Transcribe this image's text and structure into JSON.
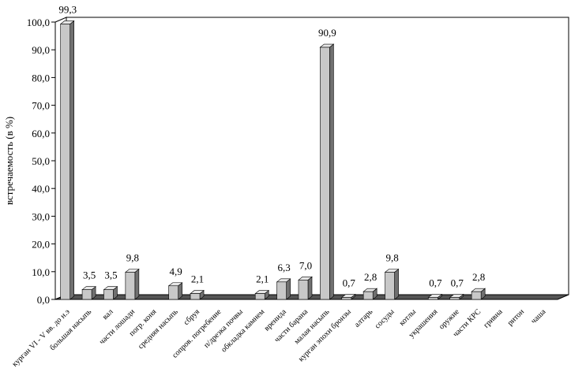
{
  "chart_data": {
    "type": "bar3d",
    "y_label": "встречаемость (в %)",
    "categories": [
      "курган VI - V вв. до н.э",
      "большая насыпь",
      "вал",
      "части лошади",
      "погр. коня",
      "средняя насыпь",
      "сбруя",
      "сопров. погребение",
      "п/дрезка почвы",
      "обкладка камнем",
      "вренида",
      "части барана",
      "малая насыпь",
      "курган эпохи бронзы",
      "алтарь",
      "сосуды",
      "котлы",
      "украшения",
      "оружие",
      "части КРС",
      "гривна",
      "ритон",
      "чаша"
    ],
    "values": [
      99.3,
      3.5,
      3.5,
      9.8,
      null,
      4.9,
      2.1,
      null,
      null,
      2.1,
      6.3,
      7.0,
      90.9,
      0.7,
      2.8,
      9.8,
      null,
      0.7,
      0.7,
      2.8,
      null,
      null,
      null
    ],
    "value_labels": [
      "99,3",
      "3,5",
      "3,5",
      "9,8",
      null,
      "4,9",
      "2,1",
      null,
      null,
      "2,1",
      "6,3",
      "7,0",
      "90,9",
      "0,7",
      "2,8",
      "9,8",
      null,
      "0,7",
      "0,7",
      "2,8",
      null,
      null,
      null
    ],
    "color": "#c8c8c8",
    "ylim": [
      0,
      100
    ],
    "yticks": [
      {
        "value": 0,
        "label": "0,0"
      },
      {
        "value": 10,
        "label": "10,0"
      },
      {
        "value": 20,
        "label": "20,0"
      },
      {
        "value": 30,
        "label": "30,0"
      },
      {
        "value": 40,
        "label": "40,0"
      },
      {
        "value": 50,
        "label": "50,0"
      },
      {
        "value": 60,
        "label": "60,0"
      },
      {
        "value": 70,
        "label": "70,0"
      },
      {
        "value": 80,
        "label": "80,0"
      },
      {
        "value": 90,
        "label": "90,0"
      },
      {
        "value": 100,
        "label": "100,0"
      }
    ]
  }
}
